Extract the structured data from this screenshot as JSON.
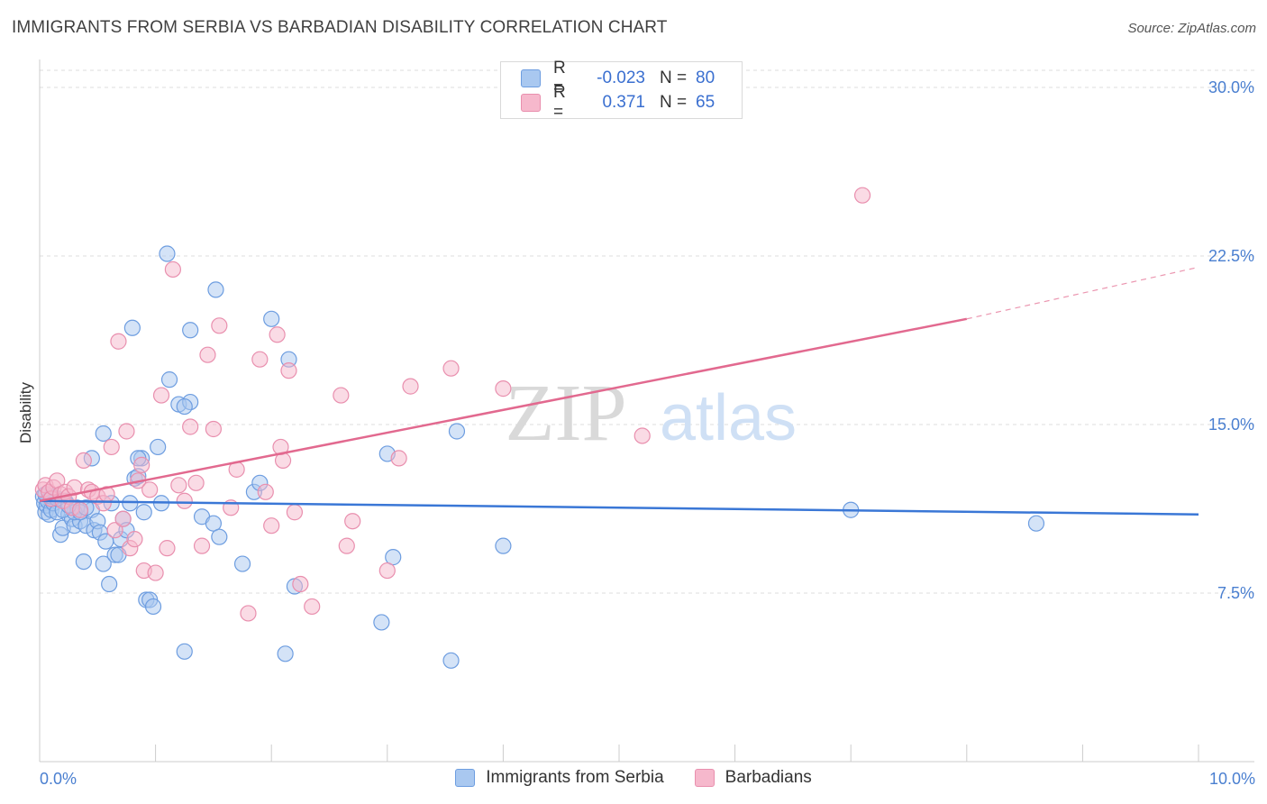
{
  "title": "IMMIGRANTS FROM SERBIA VS BARBADIAN DISABILITY CORRELATION CHART",
  "source": "Source: ZipAtlas.com",
  "watermark": {
    "zip": "ZIP",
    "atlas": "atlas"
  },
  "legend": {
    "rows": [
      {
        "r_label": "R =",
        "r_value": "-0.023",
        "n_label": "N =",
        "n_value": "80"
      },
      {
        "r_label": "R =",
        "r_value": "0.371",
        "n_label": "N =",
        "n_value": "65"
      }
    ]
  },
  "bottom_legend": {
    "series_a": "Immigrants from Serbia",
    "series_b": "Barbadians"
  },
  "colors": {
    "blue_fill": "#a9c8f0",
    "blue_stroke": "#6d9de0",
    "blue_line": "#3a77d6",
    "pink_fill": "#f6b8cc",
    "pink_stroke": "#e98fae",
    "pink_line": "#e2698f",
    "grid": "#dcdcdc",
    "tick_text": "#4a7fd0"
  },
  "chart_data": {
    "type": "scatter",
    "title": "IMMIGRANTS FROM SERBIA VS BARBADIAN DISABILITY CORRELATION CHART",
    "xlabel": "",
    "ylabel": "Disability",
    "xlim": [
      0,
      10
    ],
    "ylim": [
      0,
      31
    ],
    "x_tick_labels": [
      {
        "value": 0,
        "label": "0.0%"
      },
      {
        "value": 10,
        "label": "10.0%"
      }
    ],
    "y_tick_labels": [
      {
        "value": 7.5,
        "label": "7.5%"
      },
      {
        "value": 15,
        "label": "15.0%"
      },
      {
        "value": 22.5,
        "label": "22.5%"
      },
      {
        "value": 30,
        "label": "30.0%"
      }
    ],
    "series": [
      {
        "name": "Immigrants from Serbia",
        "r": -0.023,
        "n": 80,
        "trend": {
          "x": [
            0,
            10
          ],
          "y": [
            11.6,
            11.0
          ]
        },
        "points": [
          [
            0.03,
            11.8
          ],
          [
            0.04,
            11.5
          ],
          [
            0.05,
            11.1
          ],
          [
            0.06,
            11.4
          ],
          [
            0.07,
            11.6
          ],
          [
            0.08,
            11.0
          ],
          [
            0.1,
            11.2
          ],
          [
            0.12,
            11.5
          ],
          [
            0.15,
            11.1
          ],
          [
            0.18,
            10.1
          ],
          [
            0.2,
            10.4
          ],
          [
            0.22,
            11.6
          ],
          [
            0.25,
            11.0
          ],
          [
            0.28,
            10.8
          ],
          [
            0.3,
            10.5
          ],
          [
            0.32,
            11.3
          ],
          [
            0.35,
            10.7
          ],
          [
            0.38,
            8.9
          ],
          [
            0.4,
            10.5
          ],
          [
            0.45,
            11.2
          ],
          [
            0.47,
            10.3
          ],
          [
            0.5,
            10.7
          ],
          [
            0.52,
            10.2
          ],
          [
            0.55,
            8.8
          ],
          [
            0.57,
            9.8
          ],
          [
            0.6,
            7.9
          ],
          [
            0.62,
            11.5
          ],
          [
            0.65,
            9.2
          ],
          [
            0.68,
            9.2
          ],
          [
            0.7,
            9.9
          ],
          [
            0.72,
            10.8
          ],
          [
            0.75,
            10.3
          ],
          [
            0.78,
            11.5
          ],
          [
            0.8,
            19.3
          ],
          [
            0.82,
            12.6
          ],
          [
            0.85,
            12.7
          ],
          [
            0.88,
            13.5
          ],
          [
            0.9,
            11.1
          ],
          [
            0.92,
            7.2
          ],
          [
            0.95,
            7.2
          ],
          [
            0.98,
            6.9
          ],
          [
            1.02,
            14.0
          ],
          [
            1.05,
            11.5
          ],
          [
            1.1,
            22.6
          ],
          [
            1.12,
            17.0
          ],
          [
            1.2,
            15.9
          ],
          [
            1.25,
            4.9
          ],
          [
            1.3,
            19.2
          ],
          [
            1.4,
            10.9
          ],
          [
            1.5,
            10.6
          ],
          [
            1.52,
            21.0
          ],
          [
            1.55,
            10.0
          ],
          [
            1.75,
            8.8
          ],
          [
            1.85,
            12.0
          ],
          [
            1.9,
            12.4
          ],
          [
            2.0,
            19.7
          ],
          [
            2.15,
            17.9
          ],
          [
            2.2,
            7.8
          ],
          [
            1.3,
            16.0
          ],
          [
            2.12,
            4.8
          ],
          [
            2.95,
            6.2
          ],
          [
            3.0,
            13.7
          ],
          [
            3.05,
            9.1
          ],
          [
            3.6,
            14.7
          ],
          [
            3.55,
            4.5
          ],
          [
            4.0,
            9.6
          ],
          [
            7.0,
            11.2
          ],
          [
            8.6,
            10.6
          ],
          [
            0.55,
            14.6
          ],
          [
            0.45,
            13.5
          ],
          [
            0.85,
            13.5
          ],
          [
            1.25,
            15.8
          ],
          [
            0.3,
            11.1
          ],
          [
            0.35,
            11.1
          ],
          [
            0.2,
            11.2
          ],
          [
            0.1,
            11.8
          ],
          [
            0.15,
            11.7
          ],
          [
            0.05,
            11.9
          ],
          [
            0.25,
            11.4
          ],
          [
            0.4,
            11.3
          ]
        ]
      },
      {
        "name": "Barbadians",
        "r": 0.371,
        "n": 65,
        "trend": {
          "x": [
            0,
            8.0
          ],
          "y": [
            11.6,
            19.7
          ]
        },
        "trend_dashed": {
          "x": [
            8.0,
            10
          ],
          "y": [
            19.7,
            22.0
          ]
        },
        "points": [
          [
            0.03,
            12.1
          ],
          [
            0.05,
            12.3
          ],
          [
            0.08,
            12.0
          ],
          [
            0.1,
            11.7
          ],
          [
            0.12,
            12.2
          ],
          [
            0.15,
            12.5
          ],
          [
            0.18,
            11.9
          ],
          [
            0.2,
            11.6
          ],
          [
            0.22,
            12.0
          ],
          [
            0.25,
            11.8
          ],
          [
            0.28,
            11.3
          ],
          [
            0.3,
            12.2
          ],
          [
            0.35,
            11.2
          ],
          [
            0.38,
            13.4
          ],
          [
            0.42,
            12.1
          ],
          [
            0.45,
            12.0
          ],
          [
            0.5,
            11.8
          ],
          [
            0.55,
            11.5
          ],
          [
            0.58,
            11.9
          ],
          [
            0.62,
            14.0
          ],
          [
            0.65,
            10.3
          ],
          [
            0.68,
            18.7
          ],
          [
            0.72,
            10.8
          ],
          [
            0.75,
            14.7
          ],
          [
            0.78,
            9.5
          ],
          [
            0.82,
            9.9
          ],
          [
            0.85,
            12.5
          ],
          [
            0.88,
            13.2
          ],
          [
            0.9,
            8.5
          ],
          [
            0.95,
            12.1
          ],
          [
            1.0,
            8.4
          ],
          [
            1.05,
            16.3
          ],
          [
            1.1,
            9.5
          ],
          [
            1.15,
            21.9
          ],
          [
            1.2,
            12.3
          ],
          [
            1.25,
            11.6
          ],
          [
            1.3,
            14.9
          ],
          [
            1.35,
            12.4
          ],
          [
            1.4,
            9.6
          ],
          [
            1.45,
            18.1
          ],
          [
            1.5,
            14.8
          ],
          [
            1.55,
            19.4
          ],
          [
            1.65,
            11.3
          ],
          [
            1.7,
            13.0
          ],
          [
            1.8,
            6.6
          ],
          [
            1.9,
            17.9
          ],
          [
            1.95,
            12.0
          ],
          [
            2.0,
            10.5
          ],
          [
            2.05,
            19.0
          ],
          [
            2.1,
            13.4
          ],
          [
            2.15,
            17.4
          ],
          [
            2.2,
            11.1
          ],
          [
            2.25,
            7.9
          ],
          [
            2.35,
            6.9
          ],
          [
            2.6,
            16.3
          ],
          [
            2.65,
            9.6
          ],
          [
            2.7,
            10.7
          ],
          [
            3.0,
            8.5
          ],
          [
            3.1,
            13.5
          ],
          [
            3.2,
            16.7
          ],
          [
            3.55,
            17.5
          ],
          [
            4.0,
            16.6
          ],
          [
            5.2,
            14.5
          ],
          [
            7.1,
            25.2
          ],
          [
            2.08,
            14.0
          ]
        ]
      }
    ]
  }
}
